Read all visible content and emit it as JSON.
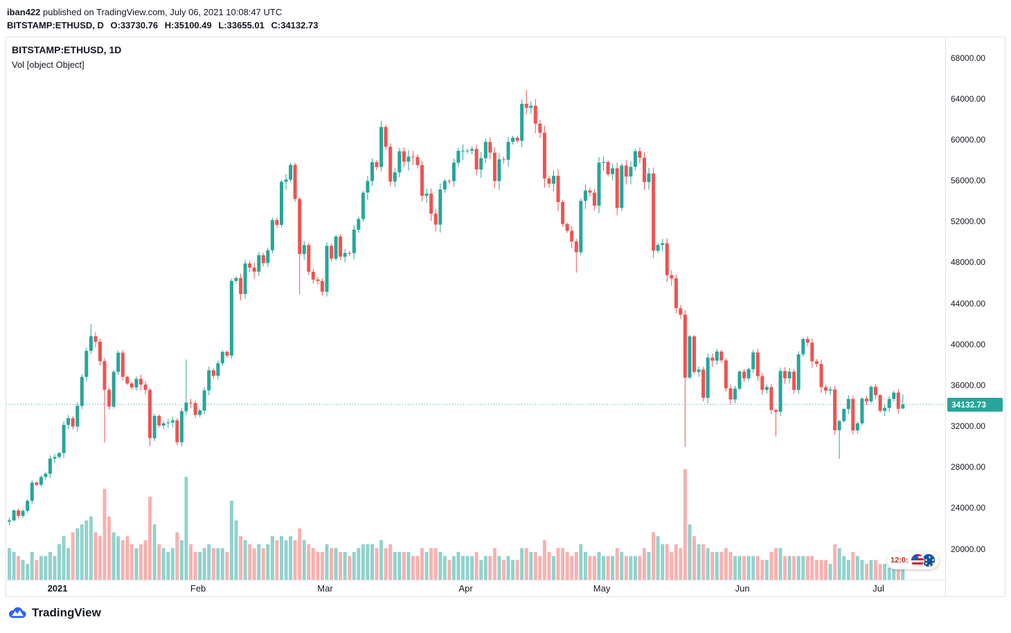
{
  "header": {
    "line1": {
      "user": "iban422",
      "rest": " published on TradingView.com, July 06, 2021 10:08:47 UTC"
    },
    "line2": {
      "symbol": "BITSTAMP:ETHUSD, D",
      "open": "O:33730.76",
      "high": "H:35100.49",
      "low": "L:33655.01",
      "close": "C:34132.73"
    }
  },
  "legend": {
    "title": "BITSTAMP:ETHUSD, 1D",
    "volume_label": "Vol [object Object]"
  },
  "price_axis": {
    "last_price": 34132.73,
    "last_price_label": "34132.73"
  },
  "time_axis": {
    "ticks": [
      {
        "label": "2021",
        "index": 11,
        "bold": true
      },
      {
        "label": "Feb",
        "index": 42,
        "bold": false
      },
      {
        "label": "Mar",
        "index": 70,
        "bold": false
      },
      {
        "label": "Apr",
        "index": 101,
        "bold": false
      },
      {
        "label": "May",
        "index": 131,
        "bold": false
      },
      {
        "label": "Jun",
        "index": 162,
        "bold": false
      },
      {
        "label": "Jul",
        "index": 192,
        "bold": false
      }
    ]
  },
  "event_badge": {
    "countdown": "12:0:"
  },
  "footer": {
    "brand": "TradingView"
  },
  "colors": {
    "up": "#26a69a",
    "down": "#ef5350",
    "vol_up": "rgba(38,166,154,0.5)",
    "vol_down": "rgba(239,83,80,0.45)",
    "axis_text": "#131722",
    "border": "#e0e3eb",
    "badge_bg": "#26a69a",
    "badge_text": "#ffffff",
    "brand_blue": "#2962ff"
  },
  "chart_data": {
    "type": "candlestick",
    "title": "BITSTAMP:ETHUSD, 1D",
    "symbol": "BITSTAMP:ETHUSD",
    "interval": "1D",
    "start_date": "2020-12-21",
    "end_date": "2021-07-06",
    "y_domain": [
      17000,
      70000
    ],
    "y_ticks": [
      68000,
      64000,
      60000,
      56000,
      52000,
      48000,
      44000,
      40000,
      36000,
      32000,
      28000,
      24000,
      20000
    ],
    "grid": false,
    "legend_position": "top-left",
    "last_price": 34132.73,
    "open_rule": "previous_close",
    "closes": [
      22803,
      23783,
      23241,
      23735,
      24712,
      26493,
      26281,
      27036,
      27362,
      28840,
      29001,
      29374,
      32127,
      32782,
      31971,
      33992,
      36824,
      39371,
      40797,
      40254,
      38356,
      35566,
      33922,
      37316,
      39187,
      36825,
      36178,
      35791,
      36630,
      36069,
      35547,
      30825,
      33005,
      32067,
      32289,
      32366,
      32569,
      30432,
      33466,
      34316,
      34269,
      33114,
      33537,
      35510,
      37472,
      36926,
      38144,
      39266,
      38903,
      46196,
      46481,
      44918,
      47909,
      47504,
      47105,
      48717,
      47945,
      49199,
      52149,
      51679,
      55888,
      56099,
      57539,
      54207,
      48824,
      49705,
      47093,
      46339,
      46188,
      45137,
      49631,
      48378,
      50538,
      48561,
      48927,
      48912,
      51206,
      52246,
      54824,
      55963,
      57805,
      57332,
      61243,
      59302,
      55907,
      56804,
      58870,
      57858,
      58346,
      58313,
      57523,
      54529,
      54738,
      52774,
      51704,
      55137,
      55973,
      55950,
      57750,
      58917,
      58918,
      58926,
      59095,
      57093,
      58192,
      59778,
      58735,
      55958,
      58083,
      58041,
      59793,
      60204,
      59893,
      63503,
      63109,
      63314,
      61572,
      60683,
      56216,
      55696,
      56473,
      53906,
      51762,
      51093,
      50050,
      49004,
      54021,
      55033,
      54824,
      53555,
      57750,
      57828,
      56631,
      57200,
      53333,
      57473,
      56396,
      57352,
      58877,
      58232,
      55859,
      56704,
      49150,
      49716,
      49880,
      46760,
      46456,
      43537,
      42909,
      36753,
      40782,
      37304,
      37536,
      34770,
      38705,
      38402,
      39294,
      38436,
      35697,
      34616,
      35678,
      37332,
      36684,
      37575,
      39208,
      36894,
      35551,
      35835,
      33589,
      33416,
      37393,
      36680,
      37338,
      35546,
      39020,
      40526,
      40158,
      38349,
      38093,
      35819,
      35483,
      35600,
      31608,
      32509,
      33678,
      34663,
      31584,
      32283,
      34700,
      34434,
      35847,
      35041,
      33504,
      33786,
      34669,
      35288,
      33690,
      34132.73
    ],
    "volumes_rel": [
      8,
      7,
      6,
      5,
      4,
      7,
      5,
      6,
      6,
      7,
      6,
      9,
      11,
      8,
      12,
      13,
      14,
      15,
      16,
      12,
      11,
      23,
      16,
      12,
      11,
      10,
      11,
      9,
      8,
      9,
      10,
      21,
      14,
      9,
      8,
      7,
      8,
      12,
      10,
      26,
      9,
      7,
      7,
      8,
      9,
      8,
      8,
      8,
      7,
      20,
      15,
      11,
      10,
      9,
      8,
      9,
      8,
      9,
      11,
      10,
      11,
      10,
      11,
      10,
      13,
      10,
      9,
      8,
      7,
      7,
      9,
      8,
      8,
      7,
      7,
      6,
      7,
      8,
      9,
      9,
      9,
      8,
      10,
      8,
      9,
      7,
      7,
      7,
      7,
      6,
      6,
      8,
      7,
      8,
      8,
      7,
      6,
      5,
      6,
      7,
      6,
      6,
      6,
      7,
      5,
      6,
      6,
      8,
      6,
      5,
      6,
      5,
      5,
      8,
      8,
      7,
      7,
      6,
      10,
      7,
      6,
      8,
      8,
      7,
      6,
      7,
      9,
      7,
      6,
      6,
      7,
      6,
      6,
      6,
      8,
      7,
      6,
      6,
      6,
      6,
      8,
      7,
      12,
      11,
      9,
      9,
      7,
      9,
      8,
      28,
      14,
      11,
      9,
      9,
      8,
      7,
      7,
      7,
      8,
      7,
      6,
      6,
      6,
      6,
      6,
      6,
      5,
      5,
      7,
      8,
      8,
      6,
      6,
      6,
      6,
      6,
      6,
      6,
      5,
      5,
      5,
      4,
      9,
      8,
      6,
      5,
      7,
      6,
      5,
      4,
      5,
      5,
      4,
      4,
      3,
      3,
      4,
      4
    ],
    "wick_overrides": {
      "18": [
        null,
        41950,
        null
      ],
      "21": [
        null,
        null,
        30420
      ],
      "31": [
        null,
        null,
        30076
      ],
      "39": [
        null,
        38531,
        null
      ],
      "64": [
        null,
        null,
        44892
      ],
      "82": [
        null,
        61844,
        null
      ],
      "114": [
        null,
        64854,
        null
      ],
      "125": [
        null,
        null,
        47004
      ],
      "149": [
        null,
        null,
        30000
      ],
      "169": [
        null,
        null,
        31000
      ],
      "183": [
        null,
        null,
        28805
      ],
      "197": [
        33730.76,
        35100.49,
        33655.01
      ]
    }
  }
}
